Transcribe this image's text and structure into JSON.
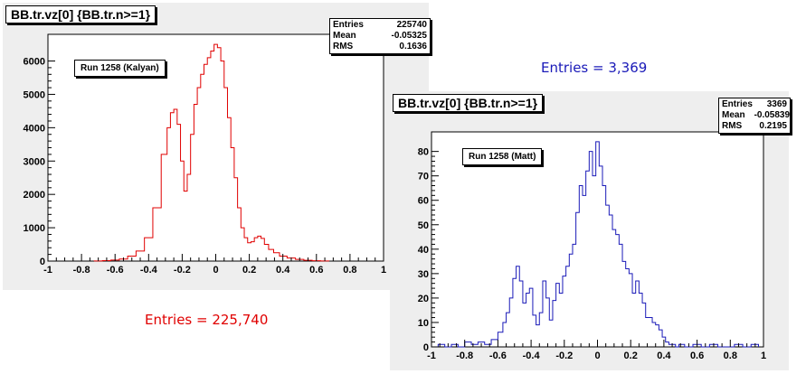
{
  "colors": {
    "red_series": "#e00000",
    "blue_series": "#1a1ab8",
    "canvas_bg": "#eeeeee"
  },
  "annotations": {
    "blue_text": "Entries = 3,369",
    "red_text": "Entries = 225,740"
  },
  "panels": [
    {
      "title": "BB.tr.vz[0] {BB.tr.n>=1}",
      "run_label": "Run 1258 (Kalyan)",
      "stats": [
        {
          "label": "Entries",
          "value": "225740"
        },
        {
          "label": "Mean",
          "value": "-0.05325"
        },
        {
          "label": "RMS",
          "value": "0.1636"
        }
      ]
    },
    {
      "title": "BB.tr.vz[0] {BB.tr.n>=1}",
      "run_label": "Run 1258 (Matt)",
      "stats": [
        {
          "label": "Entries",
          "value": "3369"
        },
        {
          "label": "Mean",
          "value": "-0.05839"
        },
        {
          "label": "RMS",
          "value": "0.2195"
        }
      ]
    }
  ],
  "chart_data": [
    {
      "type": "histogram",
      "title": "BB.tr.vz[0] {BB.tr.n>=1}",
      "legend": "Run 1258 (Kalyan)",
      "color": "#e00000",
      "xlim": [
        -1,
        1
      ],
      "ylim": [
        0,
        6800
      ],
      "xticks": [
        -1,
        -0.8,
        -0.6,
        -0.4,
        -0.2,
        0,
        0.2,
        0.4,
        0.6,
        0.8,
        1
      ],
      "xtick_labels": [
        "-1",
        "-0.8",
        "-0.6",
        "-0.4",
        "-0.2",
        "0",
        "0.2",
        "0.4",
        "0.6",
        "0.8",
        "1"
      ],
      "yticks": [
        0,
        1000,
        2000,
        3000,
        4000,
        5000,
        6000
      ],
      "ytick_labels": [
        "0",
        "1000",
        "2000",
        "3000",
        "4000",
        "5000",
        "6000"
      ],
      "x": [
        -0.7,
        -0.65,
        -0.6,
        -0.55,
        -0.5,
        -0.45,
        -0.4,
        -0.35,
        -0.3,
        -0.28,
        -0.26,
        -0.24,
        -0.22,
        -0.2,
        -0.18,
        -0.16,
        -0.14,
        -0.12,
        -0.1,
        -0.08,
        -0.06,
        -0.04,
        -0.02,
        0,
        0.02,
        0.04,
        0.06,
        0.08,
        0.1,
        0.12,
        0.14,
        0.16,
        0.18,
        0.2,
        0.22,
        0.24,
        0.26,
        0.28,
        0.3,
        0.33,
        0.36,
        0.4,
        0.45,
        0.5,
        0.55,
        0.6,
        0.65
      ],
      "y": [
        5,
        15,
        30,
        60,
        150,
        300,
        700,
        1600,
        3200,
        4000,
        4450,
        4550,
        4100,
        3000,
        2100,
        2600,
        3800,
        4700,
        5200,
        5600,
        5900,
        6100,
        6300,
        6500,
        6400,
        6000,
        5200,
        4300,
        3400,
        2500,
        1600,
        1000,
        700,
        550,
        580,
        700,
        750,
        680,
        500,
        350,
        250,
        150,
        90,
        50,
        25,
        10,
        5
      ]
    },
    {
      "type": "histogram",
      "title": "BB.tr.vz[0] {BB.tr.n>=1}",
      "legend": "Run 1258 (Matt)",
      "color": "#1a1ab8",
      "xlim": [
        -1,
        1
      ],
      "ylim": [
        0,
        88
      ],
      "xticks": [
        -1,
        -0.8,
        -0.6,
        -0.4,
        -0.2,
        0,
        0.2,
        0.4,
        0.6,
        0.8,
        1
      ],
      "xtick_labels": [
        "-1",
        "-0.8",
        "-0.6",
        "-0.4",
        "-0.2",
        "0",
        "0.2",
        "0.4",
        "0.6",
        "0.8",
        "1"
      ],
      "yticks": [
        0,
        10,
        20,
        30,
        40,
        50,
        60,
        70,
        80
      ],
      "ytick_labels": [
        "0",
        "10",
        "20",
        "30",
        "40",
        "50",
        "60",
        "70",
        "80"
      ],
      "x": [
        -0.98,
        -0.94,
        -0.9,
        -0.86,
        -0.82,
        -0.78,
        -0.74,
        -0.7,
        -0.66,
        -0.62,
        -0.58,
        -0.56,
        -0.54,
        -0.52,
        -0.5,
        -0.48,
        -0.46,
        -0.44,
        -0.42,
        -0.4,
        -0.38,
        -0.36,
        -0.34,
        -0.32,
        -0.3,
        -0.28,
        -0.26,
        -0.24,
        -0.22,
        -0.2,
        -0.18,
        -0.16,
        -0.14,
        -0.12,
        -0.1,
        -0.08,
        -0.06,
        -0.04,
        -0.02,
        0,
        0.02,
        0.04,
        0.06,
        0.08,
        0.1,
        0.12,
        0.14,
        0.16,
        0.18,
        0.2,
        0.22,
        0.24,
        0.26,
        0.28,
        0.3,
        0.32,
        0.34,
        0.36,
        0.38,
        0.4,
        0.42,
        0.44,
        0.46,
        0.48,
        0.5,
        0.55,
        0.6,
        0.65,
        0.7,
        0.75,
        0.8,
        0.85,
        0.9,
        0.95
      ],
      "y": [
        0,
        1,
        0,
        1,
        0,
        2,
        1,
        2,
        1,
        3,
        6,
        10,
        14,
        20,
        28,
        33,
        27,
        18,
        22,
        24,
        13,
        9,
        14,
        27,
        20,
        11,
        19,
        26,
        22,
        29,
        33,
        38,
        42,
        55,
        66,
        62,
        72,
        80,
        70,
        84,
        74,
        66,
        58,
        54,
        48,
        46,
        42,
        35,
        32,
        30,
        22,
        27,
        22,
        18,
        12,
        12,
        10,
        9,
        7,
        4,
        2,
        1,
        1,
        0,
        1,
        0,
        1,
        0,
        1,
        0,
        0,
        1,
        0,
        1
      ]
    }
  ]
}
